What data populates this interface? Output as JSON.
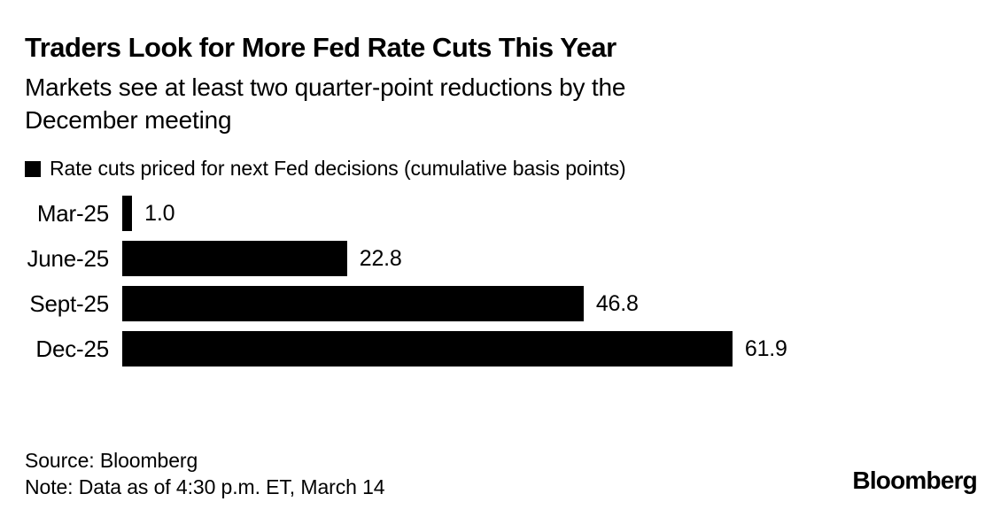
{
  "header": {
    "title": "Traders Look for More Fed Rate Cuts This Year",
    "subtitle": "Markets see at least two quarter-point reductions by the\nDecember meeting"
  },
  "legend": {
    "label": "Rate cuts priced for next Fed decisions (cumulative basis points)",
    "marker_color": "#000000"
  },
  "chart_data": {
    "type": "bar",
    "orientation": "horizontal",
    "categories": [
      "Mar-25",
      "June-25",
      "Sept-25",
      "Dec-25"
    ],
    "values": [
      1.0,
      22.8,
      46.8,
      61.9
    ],
    "decimals": 1,
    "title": "Traders Look for More Fed Rate Cuts This Year",
    "subtitle": "Markets see at least two quarter-point reductions by the December meeting",
    "legend_entry": "Rate cuts priced for next Fed decisions (cumulative basis points)",
    "xlabel": "",
    "ylabel": "",
    "xlim": [
      0,
      62
    ],
    "grid": false,
    "legend_position": "top-left",
    "bar_color": "#000000",
    "value_labels": [
      "1.0",
      "22.8",
      "46.8",
      "61.9"
    ]
  },
  "footer": {
    "source": "Source: Bloomberg",
    "note": "Note: Data as of 4:30 p.m. ET, March 14",
    "brand": "Bloomberg"
  },
  "colors": {
    "background": "#ffffff",
    "bar": "#000000",
    "text": "#000000"
  }
}
